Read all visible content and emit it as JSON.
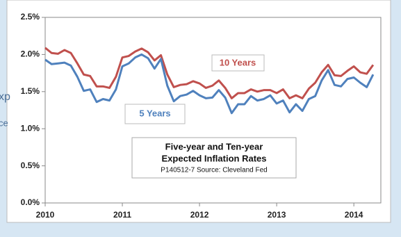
{
  "background_text": [
    "xp",
    "ce"
  ],
  "chart_data": {
    "type": "line",
    "annotations": [
      "10 Years",
      "5 Years"
    ],
    "caption": [
      "Five-year and Ten-year",
      "Expected Inflation Rates",
      "P140512-7 Source: Cleveland Fed"
    ],
    "x": [
      2010,
      2010.083,
      2010.167,
      2010.25,
      2010.333,
      2010.417,
      2010.5,
      2010.583,
      2010.667,
      2010.75,
      2010.833,
      2010.917,
      2011,
      2011.083,
      2011.167,
      2011.25,
      2011.333,
      2011.417,
      2011.5,
      2011.583,
      2011.667,
      2011.75,
      2011.833,
      2011.917,
      2012,
      2012.083,
      2012.167,
      2012.25,
      2012.333,
      2012.417,
      2012.5,
      2012.583,
      2012.667,
      2012.75,
      2012.833,
      2012.917,
      2013,
      2013.083,
      2013.167,
      2013.25,
      2013.333,
      2013.417,
      2013.5,
      2013.583,
      2013.667,
      2013.75,
      2013.833,
      2013.917,
      2014,
      2014.083,
      2014.167,
      2014.25
    ],
    "series": [
      {
        "name": "10 Years",
        "color": "#c0504d",
        "values": [
          2.09,
          2.02,
          2.01,
          2.06,
          2.02,
          1.88,
          1.73,
          1.71,
          1.57,
          1.57,
          1.55,
          1.7,
          1.96,
          1.98,
          2.04,
          2.08,
          2.03,
          1.92,
          1.99,
          1.73,
          1.56,
          1.59,
          1.6,
          1.64,
          1.61,
          1.55,
          1.58,
          1.65,
          1.55,
          1.41,
          1.48,
          1.48,
          1.53,
          1.5,
          1.52,
          1.52,
          1.48,
          1.53,
          1.41,
          1.45,
          1.41,
          1.54,
          1.62,
          1.76,
          1.86,
          1.72,
          1.71,
          1.78,
          1.84,
          1.76,
          1.74,
          1.86
        ]
      },
      {
        "name": "5 Years",
        "color": "#4f81bd",
        "values": [
          1.93,
          1.87,
          1.88,
          1.89,
          1.85,
          1.7,
          1.51,
          1.53,
          1.36,
          1.4,
          1.38,
          1.53,
          1.84,
          1.88,
          1.96,
          2.0,
          1.95,
          1.81,
          1.94,
          1.58,
          1.37,
          1.44,
          1.46,
          1.51,
          1.45,
          1.41,
          1.42,
          1.52,
          1.42,
          1.21,
          1.33,
          1.33,
          1.44,
          1.38,
          1.4,
          1.45,
          1.34,
          1.38,
          1.22,
          1.33,
          1.24,
          1.4,
          1.44,
          1.65,
          1.79,
          1.59,
          1.57,
          1.67,
          1.69,
          1.62,
          1.56,
          1.73
        ]
      }
    ],
    "xlim": [
      2010,
      2014.35
    ],
    "xticks": [
      2010,
      2011,
      2012,
      2013,
      2014
    ],
    "ylim": [
      0,
      2.5
    ],
    "yticks": [
      {
        "value": 0,
        "label": "0.0%"
      },
      {
        "value": 0.5,
        "label": "0.5%"
      },
      {
        "value": 1,
        "label": "1.0%"
      },
      {
        "value": 1.5,
        "label": "1.5%"
      },
      {
        "value": 2,
        "label": "2.0%"
      },
      {
        "value": 2.5,
        "label": "2.5%"
      }
    ],
    "grid": false
  }
}
